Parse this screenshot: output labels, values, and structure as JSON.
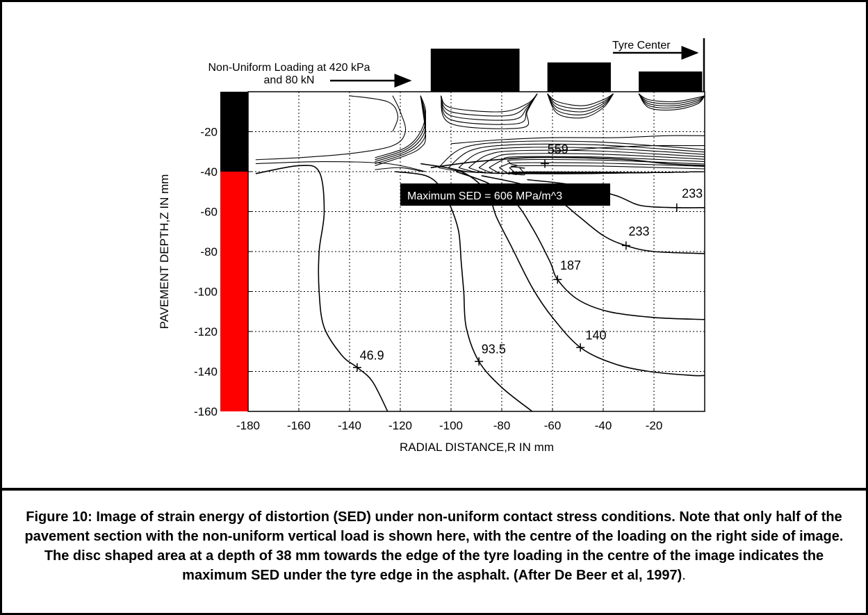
{
  "chart_data": {
    "type": "contour",
    "xlabel": "RADIAL DISTANCE,R IN mm",
    "ylabel": "PAVEMENT DEPTH,Z IN mm",
    "xlim": [
      -180,
      0
    ],
    "ylim": [
      -160,
      0
    ],
    "xticks": [
      -180,
      -160,
      -140,
      -120,
      -100,
      -80,
      -60,
      -40,
      -20
    ],
    "yticks": [
      -20,
      -40,
      -60,
      -80,
      -100,
      -120,
      -140,
      -160
    ],
    "grid": true,
    "layers": [
      {
        "from": 0,
        "to": -40,
        "color": "#000000"
      },
      {
        "from": -40,
        "to": -160,
        "color": "#ff0000"
      }
    ],
    "load_blocks": [
      {
        "x0": -108,
        "x1": -73,
        "height": 1.0
      },
      {
        "x0": -62,
        "x1": -37,
        "height": 0.68
      },
      {
        "x0": -26,
        "x1": -1,
        "height": 0.47
      }
    ],
    "contours": [
      {
        "label": "46.9",
        "points": [
          [
            -177,
            -41
          ],
          [
            -160,
            -37
          ],
          [
            -152,
            -40
          ],
          [
            -150,
            -60
          ],
          [
            -152,
            -80
          ],
          [
            -152,
            -100
          ],
          [
            -150,
            -118
          ],
          [
            -143,
            -132
          ],
          [
            -137,
            -138
          ],
          [
            -131,
            -145
          ],
          [
            -125,
            -160
          ]
        ],
        "marker": [
          -137,
          -138
        ],
        "label_pos": [
          -136,
          -134
        ]
      },
      {
        "label": "93.5",
        "points": [
          [
            -122,
            -40
          ],
          [
            -110,
            -42
          ],
          [
            -104,
            -48
          ],
          [
            -100,
            -58
          ],
          [
            -97,
            -70
          ],
          [
            -96,
            -85
          ],
          [
            -95,
            -100
          ],
          [
            -94,
            -118
          ],
          [
            -89,
            -135
          ],
          [
            -80,
            -148
          ],
          [
            -68,
            -160
          ]
        ],
        "marker": [
          -89,
          -135
        ],
        "label_pos": [
          -88,
          -131
        ]
      },
      {
        "label": "140",
        "points": [
          [
            -112,
            -36
          ],
          [
            -96,
            -40
          ],
          [
            -86,
            -50
          ],
          [
            -82,
            -63
          ],
          [
            -76,
            -78
          ],
          [
            -68,
            -98
          ],
          [
            -60,
            -113
          ],
          [
            -49,
            -128
          ],
          [
            -36,
            -136
          ],
          [
            -22,
            -140
          ],
          [
            -5,
            -142
          ],
          [
            0,
            -142
          ]
        ],
        "marker": [
          -49,
          -128
        ],
        "label_pos": [
          -47,
          -124
        ]
      },
      {
        "label": "187",
        "points": [
          [
            -98,
            -40
          ],
          [
            -85,
            -46
          ],
          [
            -75,
            -55
          ],
          [
            -68,
            -68
          ],
          [
            -61,
            -85
          ],
          [
            -58,
            -94
          ],
          [
            -50,
            -104
          ],
          [
            -38,
            -110
          ],
          [
            -20,
            -113
          ],
          [
            0,
            -114
          ]
        ],
        "marker": [
          -58,
          -94
        ],
        "label_pos": [
          -57,
          -89
        ]
      },
      {
        "label": "233",
        "points": [
          [
            -88,
            -42
          ],
          [
            -70,
            -47
          ],
          [
            -58,
            -54
          ],
          [
            -50,
            -62
          ],
          [
            -40,
            -72
          ],
          [
            -31,
            -77
          ],
          [
            -20,
            -80
          ],
          [
            0,
            -81
          ]
        ],
        "marker": [
          -31,
          -77
        ],
        "label_pos": [
          -30,
          -72
        ]
      },
      {
        "label": "233",
        "points": [
          [
            -70,
            -44
          ],
          [
            -50,
            -47
          ],
          [
            -35,
            -52
          ],
          [
            -25,
            -57
          ],
          [
            -11,
            -58
          ],
          [
            0,
            -58
          ]
        ],
        "marker": [
          -11,
          -58
        ],
        "label_pos": [
          -9,
          -53
        ]
      },
      {
        "label": "559",
        "points": [
          [
            -108,
            -38
          ],
          [
            -90,
            -35
          ],
          [
            -70,
            -33
          ],
          [
            -50,
            -33
          ],
          [
            -30,
            -34
          ],
          [
            -15,
            -36
          ],
          [
            0,
            -37
          ]
        ],
        "marker": [
          -63,
          -36
        ],
        "label_pos": [
          -62,
          -31
        ]
      }
    ],
    "annotations": {
      "load_text_line1": "Non-Uniform Loading at 420 kPa",
      "load_text_line2": "and 80 kN",
      "tyre_center": "Tyre Center",
      "max_sed": "Maximum SED = 606 MPa/m^3"
    }
  },
  "caption": {
    "text": "Figure 10: Image of strain energy of distortion (SED) under non-uniform contact stress conditions.  Note that only half of the pavement section with the non-uniform vertical load is shown here, with the centre of the loading on the right side of image. The disc shaped area at a depth of 38 mm towards the edge of the tyre loading in the centre of the image indicates the maximum SED under the tyre edge in the asphalt. (After De Beer et al, 1997)",
    "trailing": "."
  }
}
